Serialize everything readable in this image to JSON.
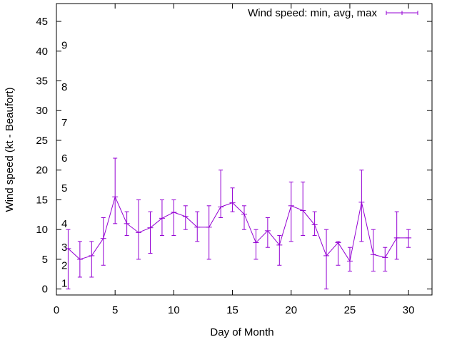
{
  "chart_data": {
    "type": "line",
    "title": "",
    "xlabel": "Day of Month",
    "ylabel": "Wind speed (kt - Beaufort)",
    "xlim": [
      0,
      32
    ],
    "ylim": [
      -1,
      48
    ],
    "xticks": [
      0,
      5,
      10,
      15,
      20,
      25,
      30
    ],
    "yticks": [
      0,
      5,
      10,
      15,
      20,
      25,
      30,
      35,
      40,
      45
    ],
    "grid": false,
    "legend_position": "top-right",
    "beaufort_labels": [
      {
        "label": "1",
        "y": 1
      },
      {
        "label": "2",
        "y": 4
      },
      {
        "label": "3",
        "y": 7
      },
      {
        "label": "4",
        "y": 11
      },
      {
        "label": "5",
        "y": 17
      },
      {
        "label": "6",
        "y": 22
      },
      {
        "label": "7",
        "y": 28
      },
      {
        "label": "8",
        "y": 34
      },
      {
        "label": "9",
        "y": 41
      }
    ],
    "series": [
      {
        "name": "Wind speed: min, avg, max",
        "color": "#9400d3",
        "x": [
          1,
          2,
          3,
          4,
          5,
          6,
          7,
          8,
          9,
          10,
          11,
          12,
          13,
          14,
          15,
          16,
          17,
          18,
          19,
          20,
          21,
          22,
          23,
          24,
          25,
          26,
          27,
          28,
          29,
          30
        ],
        "avg": [
          6.8,
          5,
          5.6,
          8.5,
          15.5,
          11,
          9.5,
          10.3,
          11.9,
          12.9,
          12.2,
          10.4,
          10.4,
          13.8,
          14.5,
          12.6,
          7.8,
          9.8,
          7.4,
          14,
          13.2,
          10.8,
          5.6,
          7.8,
          4.7,
          14.6,
          5.8,
          5.3,
          8.6,
          8.6
        ],
        "min": [
          0,
          2,
          2,
          4,
          11,
          9,
          5,
          6,
          9,
          9,
          10,
          8,
          5,
          12,
          13,
          10,
          5,
          7,
          4,
          8,
          9,
          9,
          0,
          4,
          3,
          8,
          3,
          3,
          5,
          7
        ],
        "max": [
          10,
          8,
          8,
          12,
          22,
          13,
          15,
          13,
          15,
          15,
          14,
          13,
          14,
          20,
          17,
          14,
          10,
          12,
          9,
          18,
          18,
          13,
          10,
          8,
          7,
          20,
          10,
          7,
          13,
          10
        ]
      }
    ]
  }
}
